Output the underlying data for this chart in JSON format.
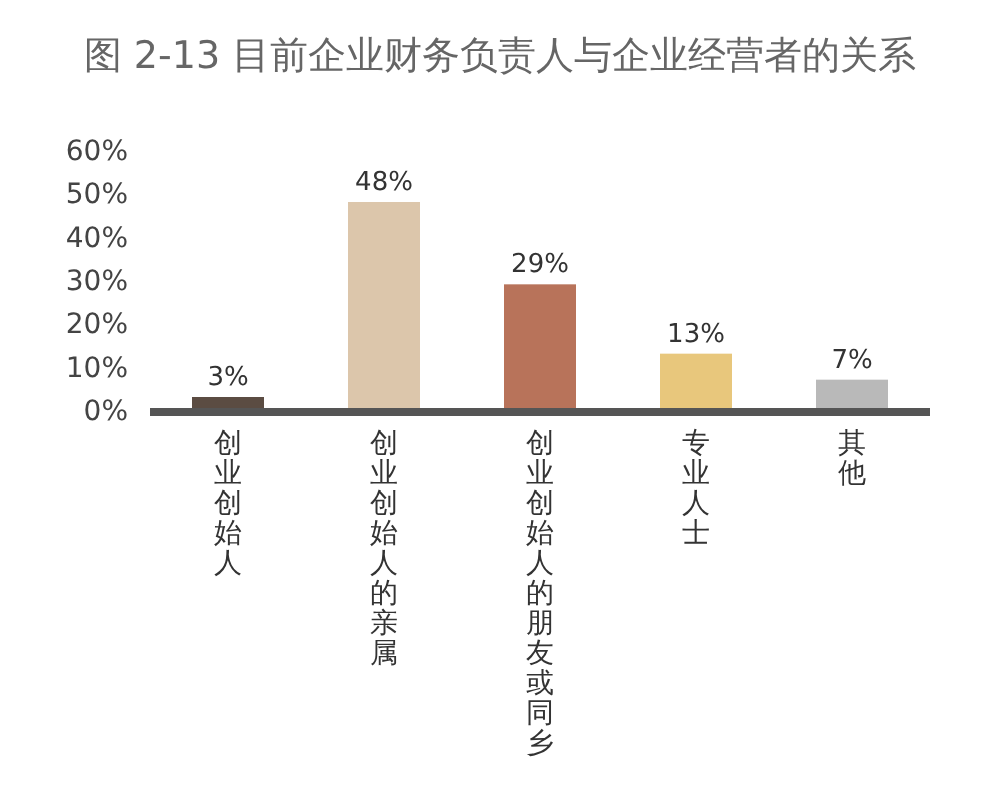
{
  "chart_data": {
    "type": "bar",
    "title": "图 2-13  目前企业财务负责人与企业经营者的关系",
    "categories": [
      "创业创始人",
      "创业创始人的亲属",
      "创业创始人的朋友或同乡",
      "专业人士",
      "其他"
    ],
    "values": [
      3,
      48,
      29,
      13,
      7
    ],
    "value_labels": [
      "3%",
      "48%",
      "29%",
      "13%",
      "7%"
    ],
    "colors": [
      "#5b4c42",
      "#dcc6ab",
      "#b8735a",
      "#e8c77c",
      "#b9b9b9"
    ],
    "ylim": [
      0,
      60
    ],
    "yticks": [
      {
        "value": 0,
        "label": "0%"
      },
      {
        "value": 10,
        "label": "10%"
      },
      {
        "value": 20,
        "label": "20%"
      },
      {
        "value": 30,
        "label": "30%"
      },
      {
        "value": 40,
        "label": "40%"
      },
      {
        "value": 50,
        "label": "50%"
      },
      {
        "value": 60,
        "label": "60%"
      }
    ]
  }
}
